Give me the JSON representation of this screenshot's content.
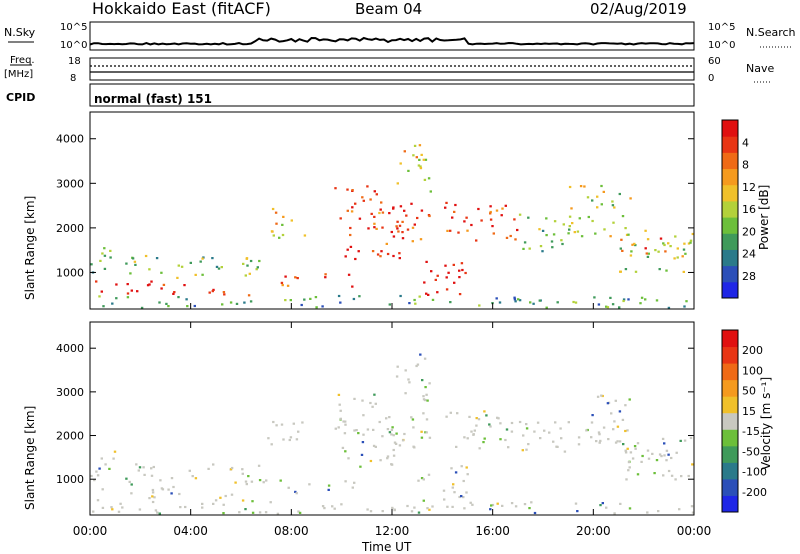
{
  "header": {
    "station": "Hokkaido East (fitACF)",
    "beam": "Beam 04",
    "date": "02/Aug/2019"
  },
  "strip_nsky": {
    "label": "N.Sky",
    "ticks_left": [
      "10^5",
      "10^0"
    ],
    "ticks_right": [
      "10^5",
      "10^0"
    ],
    "right_label": "N.Search"
  },
  "strip_freq": {
    "label": "Freq.",
    "unit": "[MHz]",
    "ticks_left": [
      "18",
      "8"
    ],
    "ticks_right": [
      "60",
      "0"
    ],
    "right_label": "Nave",
    "cpid_label": "CPID",
    "cpid_value": "normal (fast) 151"
  },
  "chart_data": [
    {
      "type": "heatmap",
      "name": "power",
      "ylabel": "Slant Range [km]",
      "yticks": [
        1000,
        2000,
        3000,
        4000
      ],
      "ylim": [
        180,
        4600
      ],
      "xlim": [
        0,
        24
      ],
      "colorbar": {
        "label": "Power [dB]",
        "ticks": [
          "4",
          "8",
          "12",
          "16",
          "20",
          "24",
          "28"
        ],
        "range": [
          0,
          32
        ],
        "colors": [
          "#1f26e6",
          "#2b4fb8",
          "#2a7a8a",
          "#3f9a5a",
          "#6cbf3a",
          "#b3d13a",
          "#f0c02a",
          "#f59a1e",
          "#ef6a16",
          "#e83514",
          "#e01010"
        ]
      }
    },
    {
      "type": "heatmap",
      "name": "velocity",
      "ylabel": "Slant Range [km]",
      "yticks": [
        1000,
        2000,
        3000,
        4000
      ],
      "ylim": [
        180,
        4600
      ],
      "xlim": [
        0,
        24
      ],
      "xticks": [
        "00:00",
        "04:00",
        "08:00",
        "12:00",
        "16:00",
        "20:00",
        "00:00"
      ],
      "xlabel": "Time UT",
      "colorbar": {
        "label": "Velocity [m s⁻¹]",
        "ticks": [
          "200",
          "100",
          "50",
          "15",
          "-15",
          "-50",
          "-100",
          "-200"
        ],
        "colors": [
          "#1f26e6",
          "#2b4fb8",
          "#2a7a8a",
          "#3f9a5a",
          "#6cbf3a",
          "#c8c8c0",
          "#f0c02a",
          "#f59a1e",
          "#ef6a16",
          "#e83514",
          "#e01010"
        ]
      }
    }
  ]
}
